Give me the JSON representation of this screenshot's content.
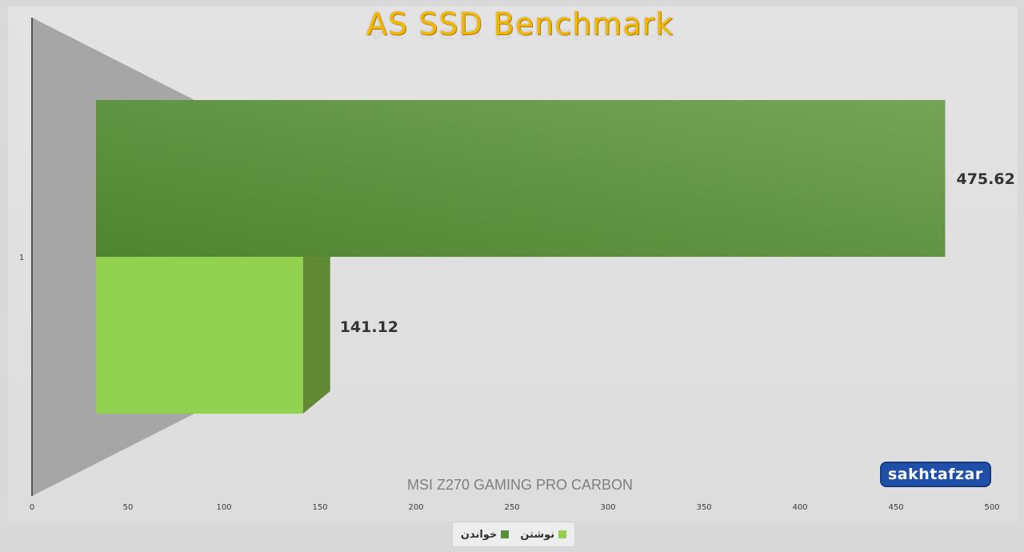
{
  "title": "AS SSD Benchmark",
  "chart_data": {
    "type": "bar",
    "orientation": "horizontal",
    "categories": [
      "1"
    ],
    "series": [
      {
        "name": "خواندن",
        "values": [
          475.62
        ],
        "color": "#5b8e3a"
      },
      {
        "name": "نوشتن",
        "values": [
          141.12
        ],
        "color": "#92d050"
      }
    ],
    "data_labels": [
      "475.62",
      "141.12"
    ],
    "xlim": [
      0,
      500
    ],
    "xticks": [
      0,
      50,
      100,
      150,
      200,
      250,
      300,
      350,
      400,
      450,
      500
    ],
    "xlabel": "MSI Z270 GAMING PRO CARBON",
    "ylabel": "",
    "grid": false,
    "legend_position": "bottom"
  },
  "logo_text": "sakhtafzar",
  "colors": {
    "title": "#f2b705",
    "background": "#dddddd",
    "axis_wall": "#a6a6a6"
  }
}
